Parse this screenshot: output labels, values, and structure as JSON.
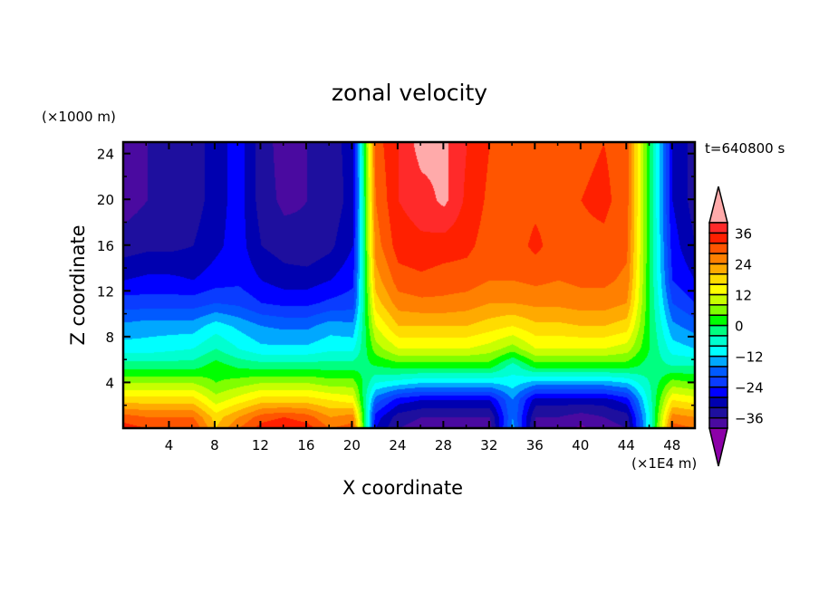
{
  "chart_data": {
    "type": "heatmap",
    "title": "zonal velocity",
    "xlabel": "X coordinate",
    "ylabel": "Z coordinate",
    "x_unit_label": "(×1E4 m)",
    "y_unit_label": "(×1000 m)",
    "annotation": "t=640800 s",
    "xlim": [
      0,
      50
    ],
    "ylim": [
      0,
      25
    ],
    "x_ticks": [
      4,
      8,
      12,
      16,
      20,
      24,
      28,
      32,
      36,
      40,
      44,
      48
    ],
    "y_ticks": [
      4,
      8,
      12,
      16,
      20,
      24
    ],
    "grid": false,
    "x": [
      0,
      2,
      4,
      6,
      8,
      10,
      12,
      14,
      16,
      18,
      20,
      22,
      24,
      26,
      28,
      30,
      32,
      34,
      36,
      38,
      40,
      42,
      44,
      46,
      48,
      50
    ],
    "z": [
      25,
      20,
      16,
      13,
      11,
      9,
      7,
      5.5,
      4,
      2.5,
      1,
      0
    ],
    "values": [
      [
        -38,
        -36,
        -35,
        -34,
        -30,
        -26,
        -34,
        -38,
        -36,
        -34,
        -30,
        30,
        36,
        42,
        41,
        36,
        32,
        30,
        30,
        30,
        31,
        32,
        30,
        0,
        -28,
        -34
      ],
      [
        -38,
        -36,
        -35,
        -34,
        -30,
        -26,
        -34,
        -37,
        -36,
        -35,
        -30,
        28,
        36,
        38,
        41,
        35,
        31,
        30,
        31,
        30,
        32,
        33,
        30,
        0,
        -28,
        -34
      ],
      [
        -34,
        -33,
        -33,
        -32,
        -29,
        -26,
        -32,
        -34,
        -35,
        -33,
        -28,
        26,
        34,
        35,
        34,
        33,
        30,
        30,
        33,
        30,
        31,
        31,
        29,
        0,
        -26,
        -32
      ],
      [
        -28,
        -27,
        -27,
        -28,
        -26,
        -25,
        -28,
        -30,
        -30,
        -28,
        -25,
        22,
        30,
        31,
        30,
        30,
        28,
        28,
        29,
        28,
        29,
        29,
        27,
        0,
        -24,
        -28
      ],
      [
        -22,
        -22,
        -22,
        -22,
        -20,
        -21,
        -24,
        -25,
        -25,
        -23,
        -22,
        18,
        26,
        27,
        27,
        26,
        24,
        24,
        25,
        25,
        26,
        26,
        24,
        0,
        -20,
        -24
      ],
      [
        -15,
        -14,
        -14,
        -14,
        -10,
        -13,
        -16,
        -17,
        -17,
        -14,
        -15,
        12,
        20,
        20,
        20,
        20,
        18,
        16,
        19,
        19,
        20,
        20,
        18,
        0,
        -15,
        -18
      ],
      [
        -10,
        -10,
        -9,
        -8,
        -4,
        -8,
        -11,
        -11,
        -11,
        -9,
        -9,
        6,
        12,
        12,
        12,
        12,
        10,
        6,
        12,
        12,
        12,
        12,
        10,
        0,
        -10,
        -12
      ],
      [
        -2,
        -2,
        -2,
        -2,
        2,
        -1,
        -2,
        -2,
        -2,
        -2,
        -2,
        0,
        2,
        2,
        2,
        2,
        2,
        -6,
        2,
        2,
        2,
        2,
        2,
        -2,
        -4,
        -4
      ],
      [
        8,
        8,
        8,
        8,
        4,
        6,
        8,
        8,
        8,
        6,
        6,
        -8,
        -10,
        -12,
        -12,
        -12,
        -12,
        -10,
        -14,
        -14,
        -14,
        -14,
        -12,
        -4,
        6,
        4
      ],
      [
        18,
        18,
        18,
        18,
        10,
        14,
        18,
        18,
        18,
        16,
        14,
        -18,
        -26,
        -28,
        -28,
        -28,
        -28,
        -16,
        -30,
        -30,
        -30,
        -30,
        -26,
        -6,
        16,
        14
      ],
      [
        30,
        28,
        28,
        28,
        18,
        24,
        30,
        32,
        30,
        24,
        26,
        -26,
        -34,
        -36,
        -36,
        -36,
        -36,
        -16,
        -36,
        -36,
        -38,
        -36,
        -34,
        -8,
        26,
        24
      ],
      [
        34,
        32,
        32,
        32,
        20,
        28,
        34,
        36,
        34,
        28,
        30,
        -28,
        -36,
        -38,
        -38,
        -38,
        -38,
        -14,
        -38,
        -38,
        -41,
        -38,
        -36,
        -8,
        30,
        28
      ]
    ],
    "colorbar": {
      "levels": [
        -40,
        -36,
        -32,
        -28,
        -24,
        -20,
        -16,
        -12,
        -8,
        -4,
        0,
        4,
        8,
        12,
        16,
        20,
        24,
        28,
        32,
        36,
        40
      ],
      "tick_labels": [
        "36",
        "24",
        "12",
        "0",
        "−12",
        "−24",
        "−36"
      ],
      "tick_values": [
        36,
        24,
        12,
        0,
        -12,
        -24,
        -36
      ],
      "colors": [
        "#4a0aa0",
        "#1e0f9e",
        "#0000b0",
        "#0000ff",
        "#0a3cff",
        "#005aff",
        "#00a8ff",
        "#00ffff",
        "#00ffd0",
        "#00ff80",
        "#00ff00",
        "#80ff00",
        "#c8ff00",
        "#ffff00",
        "#ffdc00",
        "#ffaa00",
        "#ff8000",
        "#ff5500",
        "#ff2000",
        "#ff2a2a"
      ],
      "over_color": "#ffaaaa",
      "under_color": "#8c00a8"
    }
  }
}
